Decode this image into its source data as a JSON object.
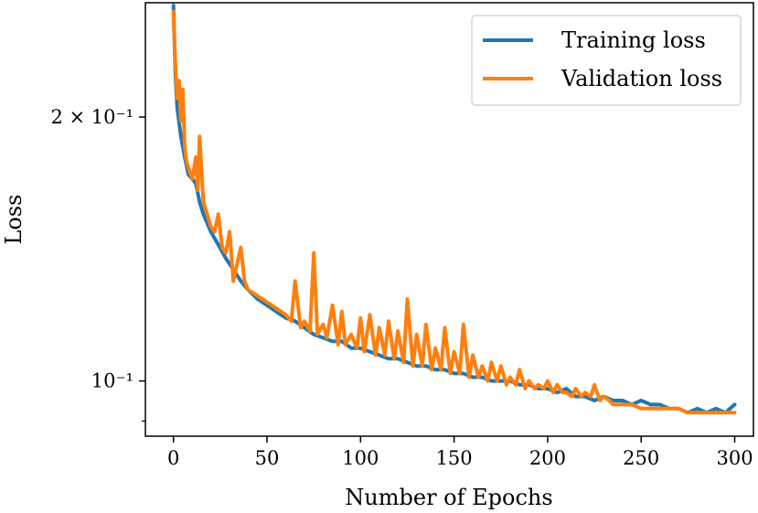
{
  "chart_data": {
    "type": "line",
    "title": "",
    "xlabel": "Number of Epochs",
    "ylabel": "Loss",
    "yscale": "log",
    "xlim": [
      -15,
      310
    ],
    "ylim": [
      0.0865,
      0.27
    ],
    "x_ticks": [
      0,
      50,
      100,
      150,
      200,
      250,
      300
    ],
    "x_tick_labels": [
      "0",
      "50",
      "100",
      "150",
      "200",
      "250",
      "300"
    ],
    "y_ticks": [
      0.2,
      0.1
    ],
    "y_tick_labels": [
      "2 × 10⁻¹",
      "10⁻¹"
    ],
    "legend_position": "top-right",
    "colors": {
      "training": "#1f77b4",
      "validation": "#ff7f0e"
    },
    "series": [
      {
        "name": "Training loss",
        "color": "#1f77b4",
        "x": [
          0,
          1,
          2,
          4,
          6,
          8,
          10,
          12,
          14,
          16,
          20,
          24,
          28,
          32,
          36,
          40,
          45,
          50,
          55,
          60,
          65,
          70,
          75,
          80,
          85,
          90,
          95,
          100,
          105,
          110,
          115,
          120,
          125,
          130,
          135,
          140,
          145,
          150,
          155,
          160,
          165,
          170,
          175,
          180,
          185,
          190,
          195,
          200,
          205,
          210,
          215,
          220,
          225,
          230,
          235,
          240,
          245,
          250,
          255,
          260,
          265,
          270,
          275,
          280,
          285,
          290,
          295,
          300
        ],
        "y": [
          0.268,
          0.225,
          0.205,
          0.19,
          0.18,
          0.172,
          0.17,
          0.168,
          0.16,
          0.155,
          0.148,
          0.143,
          0.138,
          0.134,
          0.13,
          0.127,
          0.124,
          0.122,
          0.12,
          0.118,
          0.117,
          0.115,
          0.113,
          0.112,
          0.111,
          0.111,
          0.109,
          0.109,
          0.108,
          0.107,
          0.106,
          0.106,
          0.105,
          0.104,
          0.104,
          0.103,
          0.103,
          0.102,
          0.102,
          0.101,
          0.101,
          0.1,
          0.1,
          0.1,
          0.099,
          0.099,
          0.098,
          0.098,
          0.097,
          0.098,
          0.096,
          0.096,
          0.095,
          0.096,
          0.095,
          0.095,
          0.094,
          0.095,
          0.094,
          0.094,
          0.093,
          0.093,
          0.092,
          0.093,
          0.092,
          0.093,
          0.092,
          0.094
        ]
      },
      {
        "name": "Validation loss",
        "color": "#ff7f0e",
        "x": [
          0,
          1,
          2,
          3,
          4,
          5,
          6,
          7,
          8,
          10,
          12,
          13,
          14,
          16,
          18,
          20,
          22,
          24,
          26,
          28,
          30,
          32,
          34,
          36,
          38,
          40,
          45,
          50,
          55,
          60,
          63,
          65,
          68,
          70,
          73,
          75,
          77,
          80,
          82,
          85,
          88,
          90,
          92,
          95,
          98,
          100,
          102,
          105,
          108,
          110,
          113,
          115,
          118,
          120,
          123,
          125,
          128,
          130,
          133,
          135,
          138,
          140,
          143,
          145,
          148,
          150,
          153,
          155,
          158,
          160,
          163,
          165,
          168,
          170,
          173,
          175,
          178,
          180,
          183,
          185,
          188,
          190,
          193,
          195,
          198,
          200,
          203,
          205,
          208,
          210,
          213,
          215,
          218,
          220,
          223,
          225,
          228,
          230,
          233,
          235,
          240,
          245,
          250,
          255,
          260,
          265,
          270,
          275,
          280,
          285,
          290,
          295,
          300
        ],
        "y": [
          0.264,
          0.23,
          0.21,
          0.22,
          0.198,
          0.215,
          0.185,
          0.178,
          0.175,
          0.17,
          0.18,
          0.165,
          0.19,
          0.16,
          0.155,
          0.15,
          0.148,
          0.155,
          0.142,
          0.14,
          0.148,
          0.13,
          0.136,
          0.142,
          0.13,
          0.127,
          0.125,
          0.123,
          0.121,
          0.119,
          0.117,
          0.13,
          0.115,
          0.117,
          0.114,
          0.14,
          0.113,
          0.116,
          0.112,
          0.122,
          0.11,
          0.12,
          0.11,
          0.113,
          0.109,
          0.118,
          0.108,
          0.119,
          0.107,
          0.115,
          0.107,
          0.117,
          0.106,
          0.114,
          0.105,
          0.124,
          0.104,
          0.113,
          0.104,
          0.116,
          0.103,
          0.109,
          0.103,
          0.115,
          0.102,
          0.108,
          0.102,
          0.116,
          0.101,
          0.107,
          0.101,
          0.104,
          0.1,
          0.105,
          0.1,
          0.104,
          0.099,
          0.101,
          0.099,
          0.103,
          0.098,
          0.1,
          0.098,
          0.099,
          0.098,
          0.1,
          0.097,
          0.099,
          0.097,
          0.097,
          0.096,
          0.098,
          0.096,
          0.097,
          0.096,
          0.099,
          0.095,
          0.096,
          0.095,
          0.094,
          0.094,
          0.094,
          0.093,
          0.093,
          0.093,
          0.093,
          0.093,
          0.092,
          0.092,
          0.092,
          0.092,
          0.092,
          0.092
        ]
      }
    ]
  }
}
